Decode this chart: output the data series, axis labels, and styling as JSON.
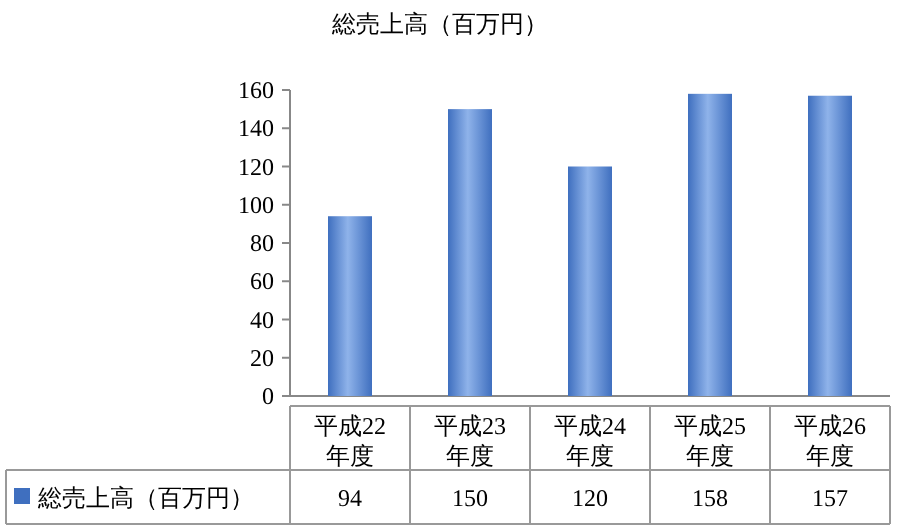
{
  "chart_data": {
    "type": "bar",
    "title": "総売上高（百万円）",
    "categories": [
      "平成22\n年度",
      "平成23\n年度",
      "平成24\n年度",
      "平成25\n年度",
      "平成26\n年度"
    ],
    "series": [
      {
        "name": "総売上高（百万円）",
        "color": "#3f6fbf",
        "values": [
          94,
          150,
          120,
          158,
          157
        ]
      }
    ],
    "ylim": [
      0,
      160
    ],
    "yticks": [
      0,
      20,
      40,
      60,
      80,
      100,
      120,
      140,
      160
    ],
    "data_labels": true,
    "legend": "bottom left",
    "grid": false
  }
}
